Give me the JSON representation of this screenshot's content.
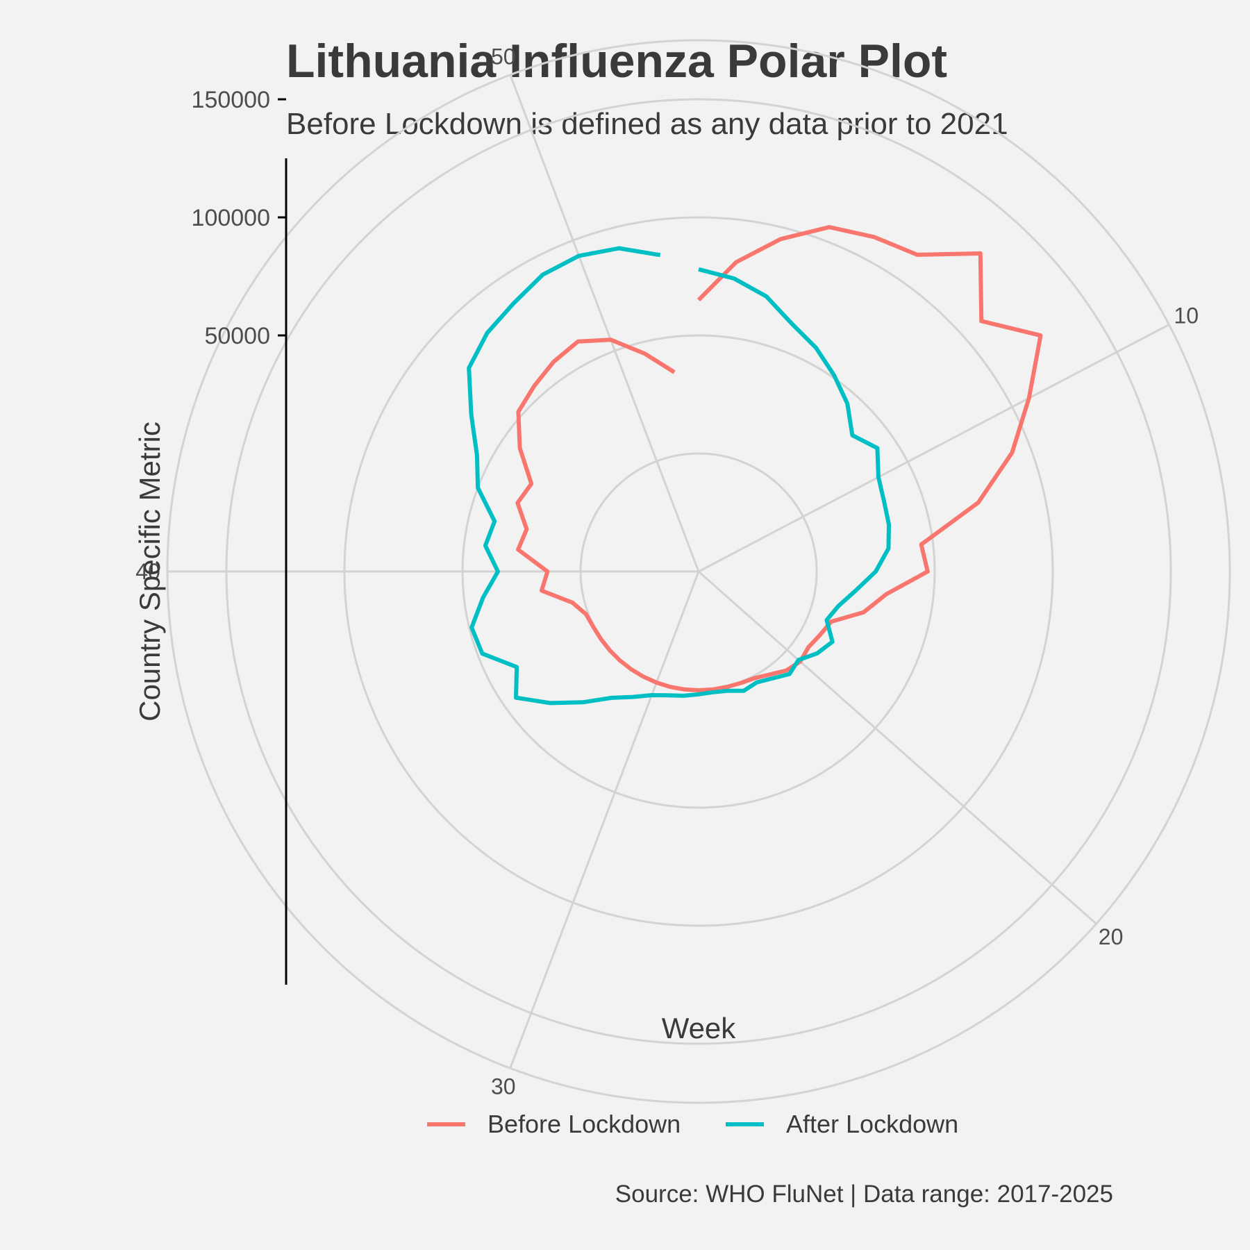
{
  "chart_data": {
    "type": "line",
    "coord": "polar",
    "title": "Lithuania Influenza Polar Plot",
    "subtitle": "Before Lockdown is defined as any data prior to 2021",
    "xlabel": "Week",
    "ylabel": "Country Specific Metric",
    "caption": "Source: WHO FluNet | Data range: 2017-2025",
    "x_ticks": [
      10,
      20,
      30,
      40,
      50
    ],
    "y_ticks": [
      50000,
      100000,
      150000
    ],
    "ylim": [
      -50000,
      175000
    ],
    "xlim": [
      1,
      53
    ],
    "grid": true,
    "legend_position": "bottom",
    "series": [
      {
        "name": "Before Lockdown",
        "color": "#F8766D",
        "x": [
          1,
          2,
          3,
          4,
          5,
          6,
          7,
          8,
          9,
          10,
          11,
          12,
          13,
          14,
          15,
          16,
          17,
          18,
          19,
          20,
          21,
          22,
          23,
          24,
          25,
          26,
          27,
          28,
          29,
          30,
          31,
          32,
          33,
          34,
          35,
          36,
          37,
          38,
          39,
          40,
          41,
          42,
          43,
          44,
          45,
          46,
          47,
          48,
          49,
          50,
          51,
          52
        ],
        "y": [
          65000,
          82000,
          95000,
          106000,
          110000,
          113000,
          130000,
          110000,
          126000,
          108000,
          92000,
          72000,
          45000,
          47000,
          30000,
          22000,
          10000,
          8000,
          6500,
          7500,
          6000,
          3000,
          1000,
          500,
          300,
          300,
          300,
          300,
          300,
          300,
          300,
          300,
          300,
          300,
          300,
          400,
          1000,
          5000,
          17000,
          14000,
          27000,
          25000,
          32000,
          30000,
          42000,
          52000,
          55000,
          58000,
          60000,
          55000,
          45000,
          35000
        ]
      },
      {
        "name": "After Lockdown",
        "color": "#00BFC4",
        "x": [
          1,
          2,
          3,
          4,
          5,
          6,
          7,
          8,
          9,
          10,
          11,
          12,
          13,
          14,
          15,
          16,
          17,
          18,
          19,
          20,
          21,
          22,
          23,
          24,
          25,
          26,
          27,
          28,
          29,
          30,
          31,
          32,
          33,
          34,
          35,
          36,
          37,
          38,
          39,
          40,
          41,
          42,
          43,
          44,
          45,
          46,
          47,
          48,
          49,
          50,
          51,
          52
        ],
        "y": [
          78000,
          75000,
          70000,
          62000,
          57000,
          51000,
          45000,
          37000,
          42000,
          36000,
          34000,
          33000,
          31000,
          25000,
          17000,
          11000,
          8000,
          14000,
          11000,
          6500,
          8000,
          5000,
          3000,
          4000,
          2000,
          1500,
          2000,
          3000,
          4000,
          6000,
          10000,
          15000,
          24000,
          34000,
          44000,
          37000,
          48000,
          49000,
          42000,
          35000,
          41000,
          39000,
          50000,
          56000,
          67000,
          80000,
          85000,
          88000,
          92000,
          93000,
          91000,
          85000
        ]
      }
    ]
  },
  "legend": {
    "items": [
      {
        "label": "Before Lockdown",
        "color": "#F8766D"
      },
      {
        "label": "After Lockdown",
        "color": "#00BFC4"
      }
    ]
  }
}
